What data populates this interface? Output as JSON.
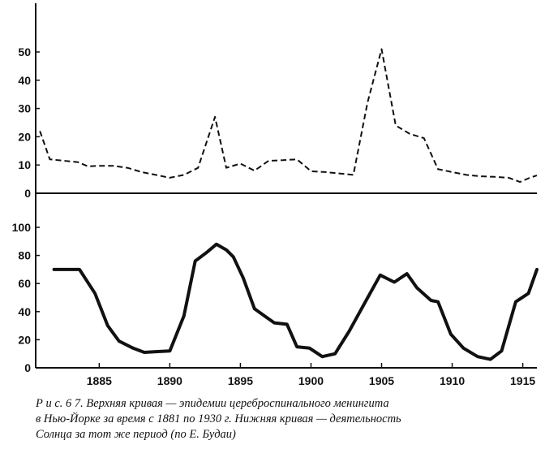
{
  "chart_data": [
    {
      "type": "line",
      "line_style": "dashed",
      "color": "#111111",
      "title": "",
      "xlabel": "",
      "ylabel": "",
      "xlim": [
        1880.5,
        1916
      ],
      "ylim": [
        0,
        55
      ],
      "y_ticks": [
        0,
        10,
        20,
        30,
        40,
        50
      ],
      "series": [
        {
          "name": "",
          "points": [
            [
              1880.8,
              22
            ],
            [
              1881.5,
              12
            ],
            [
              1882.5,
              11.5
            ],
            [
              1883.5,
              11
            ],
            [
              1884.2,
              9.5
            ],
            [
              1885,
              9.7
            ],
            [
              1886,
              9.7
            ],
            [
              1887,
              9
            ],
            [
              1888,
              7.5
            ],
            [
              1889,
              6.5
            ],
            [
              1890,
              5.5
            ],
            [
              1891,
              6.5
            ],
            [
              1892,
              9
            ],
            [
              1893.2,
              27
            ],
            [
              1894,
              9
            ],
            [
              1895,
              10.5
            ],
            [
              1896,
              8
            ],
            [
              1897,
              11.5
            ],
            [
              1898,
              11.7
            ],
            [
              1899,
              12
            ],
            [
              1900,
              7.8
            ],
            [
              1901,
              7.5
            ],
            [
              1902,
              7
            ],
            [
              1903,
              6.5
            ],
            [
              1904,
              32
            ],
            [
              1905,
              51
            ],
            [
              1906,
              24
            ],
            [
              1907,
              21
            ],
            [
              1908,
              19.5
            ],
            [
              1909,
              8.5
            ],
            [
              1910,
              7.5
            ],
            [
              1911,
              6.5
            ],
            [
              1912,
              6
            ],
            [
              1913,
              5.8
            ],
            [
              1914,
              5.5
            ],
            [
              1914.8,
              4
            ],
            [
              1915.5,
              5.5
            ],
            [
              1916,
              6.3
            ]
          ]
        }
      ]
    },
    {
      "type": "line",
      "line_style": "solid",
      "color": "#111111",
      "title": "",
      "xlabel": "",
      "ylabel": "",
      "xlim": [
        1880.5,
        1916
      ],
      "ylim": [
        0,
        110
      ],
      "y_ticks": [
        0,
        20,
        40,
        60,
        80,
        100
      ],
      "x_ticks": [
        1885,
        1890,
        1895,
        1900,
        1905,
        1910,
        1915
      ],
      "series": [
        {
          "name": "",
          "points": [
            [
              1881.8,
              70
            ],
            [
              1883,
              70
            ],
            [
              1883.6,
              70
            ],
            [
              1884.7,
              53
            ],
            [
              1885.6,
              30
            ],
            [
              1886.4,
              19
            ],
            [
              1887.4,
              14
            ],
            [
              1888.2,
              11
            ],
            [
              1889,
              11.5
            ],
            [
              1890,
              12
            ],
            [
              1891,
              37
            ],
            [
              1891.8,
              76
            ],
            [
              1892.6,
              82
            ],
            [
              1893.3,
              88
            ],
            [
              1894,
              84
            ],
            [
              1894.5,
              79
            ],
            [
              1895.2,
              64
            ],
            [
              1896,
              42
            ],
            [
              1896.7,
              37
            ],
            [
              1897.4,
              32
            ],
            [
              1898.3,
              31
            ],
            [
              1899,
              15
            ],
            [
              1899.9,
              14
            ],
            [
              1900.8,
              8
            ],
            [
              1901.7,
              10
            ],
            [
              1902.7,
              26
            ],
            [
              1903.8,
              46
            ],
            [
              1904.9,
              66
            ],
            [
              1905.9,
              61
            ],
            [
              1906.8,
              67
            ],
            [
              1907.5,
              57
            ],
            [
              1908.5,
              48
            ],
            [
              1909,
              47
            ],
            [
              1909.9,
              24
            ],
            [
              1910.8,
              14
            ],
            [
              1911.8,
              8
            ],
            [
              1912.7,
              6
            ],
            [
              1913.5,
              12
            ],
            [
              1914.5,
              47
            ],
            [
              1915.4,
              53
            ],
            [
              1916,
              70
            ]
          ]
        }
      ]
    }
  ],
  "caption": {
    "line1": "Р и с. 6 7.  Верхняя кривая — эпидемии цереброспинального менингита",
    "line2": "в Нью-Йорке за время с 1881 по 1930 г.  Нижняя кривая — деятельность",
    "line3": "Солнца за тот же период (по Е. Будаи)"
  }
}
